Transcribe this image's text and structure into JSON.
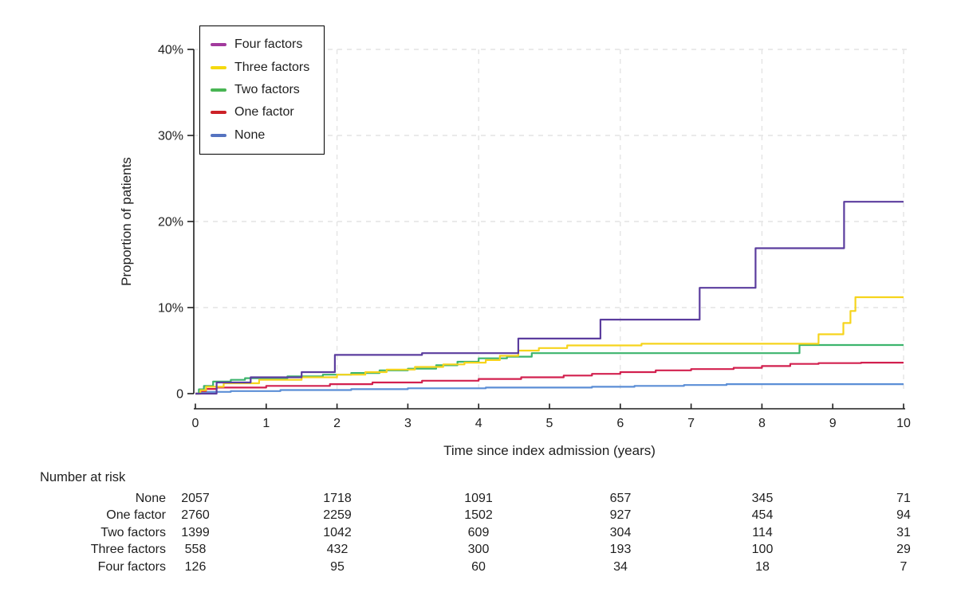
{
  "colors": {
    "background": "#ffffff",
    "axis": "#1f1f1f",
    "text": "#1f1f1f",
    "grid": "#e4e4e4"
  },
  "chart_data": {
    "type": "line",
    "subtype": "kaplan-meier-step",
    "title": "",
    "xlabel": "Time since index admission (years)",
    "ylabel": "Proportion of patients",
    "xlim": [
      0,
      10
    ],
    "ylim": [
      0,
      40
    ],
    "x_ticks": [
      0,
      1,
      2,
      3,
      4,
      5,
      6,
      7,
      8,
      9,
      10
    ],
    "y_ticks": [
      {
        "value": 0,
        "label": "0"
      },
      {
        "value": 10,
        "label": "10%"
      },
      {
        "value": 20,
        "label": "20%"
      },
      {
        "value": 30,
        "label": "30%"
      },
      {
        "value": 40,
        "label": "40%"
      }
    ],
    "grid": {
      "horizontal_at": [
        10,
        20,
        30,
        40
      ],
      "vertical_at": [
        2,
        4,
        6,
        8,
        10
      ],
      "style": "dashed"
    },
    "legend_position": "top-left",
    "series": [
      {
        "name": "Four factors",
        "color": "#5b3d9e",
        "swatch_color": "#a23a9d",
        "steps": [
          [
            0,
            0
          ],
          [
            0.3,
            1.3
          ],
          [
            0.78,
            1.9
          ],
          [
            1.5,
            2.5
          ],
          [
            1.97,
            4.5
          ],
          [
            3.2,
            4.7
          ],
          [
            4.56,
            6.4
          ],
          [
            5.72,
            8.6
          ],
          [
            7.12,
            12.3
          ],
          [
            7.91,
            16.9
          ],
          [
            9.16,
            22.3
          ],
          [
            10,
            22.3
          ]
        ]
      },
      {
        "name": "Three factors",
        "color": "#f6d41c",
        "swatch_color": "#f5d90f",
        "steps": [
          [
            0,
            0
          ],
          [
            0.07,
            0.4
          ],
          [
            0.15,
            0.8
          ],
          [
            0.4,
            1.2
          ],
          [
            0.9,
            1.6
          ],
          [
            1.5,
            1.9
          ],
          [
            2.0,
            2.2
          ],
          [
            2.4,
            2.5
          ],
          [
            2.7,
            2.8
          ],
          [
            3.1,
            3.1
          ],
          [
            3.5,
            3.4
          ],
          [
            3.8,
            3.6
          ],
          [
            4.1,
            3.9
          ],
          [
            4.3,
            4.4
          ],
          [
            4.56,
            5.0
          ],
          [
            4.85,
            5.3
          ],
          [
            5.25,
            5.6
          ],
          [
            6.3,
            5.8
          ],
          [
            8.8,
            6.9
          ],
          [
            9.15,
            8.2
          ],
          [
            9.25,
            9.6
          ],
          [
            9.32,
            11.2
          ],
          [
            10,
            11.2
          ]
        ]
      },
      {
        "name": "Two factors",
        "color": "#3cb46d",
        "swatch_color": "#49b554",
        "steps": [
          [
            0,
            0
          ],
          [
            0.05,
            0.5
          ],
          [
            0.12,
            0.9
          ],
          [
            0.25,
            1.4
          ],
          [
            0.5,
            1.6
          ],
          [
            0.7,
            1.8
          ],
          [
            1.3,
            2.0
          ],
          [
            1.8,
            2.2
          ],
          [
            2.2,
            2.4
          ],
          [
            2.6,
            2.7
          ],
          [
            3.0,
            2.9
          ],
          [
            3.4,
            3.3
          ],
          [
            3.7,
            3.7
          ],
          [
            4.0,
            4.1
          ],
          [
            4.4,
            4.3
          ],
          [
            4.75,
            4.7
          ],
          [
            8.53,
            5.65
          ],
          [
            10,
            5.65
          ]
        ]
      },
      {
        "name": "One factor",
        "color": "#d2204f",
        "swatch_color": "#cc2127",
        "steps": [
          [
            0,
            0
          ],
          [
            0.06,
            0.3
          ],
          [
            0.15,
            0.55
          ],
          [
            0.3,
            0.7
          ],
          [
            1.0,
            0.9
          ],
          [
            1.9,
            1.1
          ],
          [
            2.5,
            1.3
          ],
          [
            3.2,
            1.5
          ],
          [
            4.0,
            1.7
          ],
          [
            4.6,
            1.9
          ],
          [
            5.2,
            2.1
          ],
          [
            5.6,
            2.3
          ],
          [
            6.0,
            2.5
          ],
          [
            6.5,
            2.7
          ],
          [
            7.0,
            2.85
          ],
          [
            7.6,
            3.0
          ],
          [
            8.0,
            3.2
          ],
          [
            8.4,
            3.45
          ],
          [
            8.8,
            3.55
          ],
          [
            9.4,
            3.6
          ],
          [
            10,
            3.6
          ]
        ]
      },
      {
        "name": "None",
        "color": "#5b8ed6",
        "swatch_color": "#5573c0",
        "steps": [
          [
            0,
            0
          ],
          [
            0.08,
            0.2
          ],
          [
            0.5,
            0.3
          ],
          [
            1.2,
            0.42
          ],
          [
            2.2,
            0.52
          ],
          [
            3.0,
            0.62
          ],
          [
            4.1,
            0.7
          ],
          [
            5.6,
            0.8
          ],
          [
            6.2,
            0.9
          ],
          [
            6.9,
            1.0
          ],
          [
            7.5,
            1.1
          ],
          [
            10,
            1.1
          ]
        ]
      }
    ],
    "at_risk": {
      "title": "Number at risk",
      "time_points": [
        0,
        2,
        4,
        6,
        8,
        10
      ],
      "rows": [
        {
          "label": "None",
          "values": [
            "2057",
            "1718",
            "1091",
            "657",
            "345",
            "71"
          ]
        },
        {
          "label": "One factor",
          "values": [
            "2760",
            "2259",
            "1502",
            "927",
            "454",
            "94"
          ]
        },
        {
          "label": "Two factors",
          "values": [
            "1399",
            "1042",
            "609",
            "304",
            "114",
            "31"
          ]
        },
        {
          "label": "Three factors",
          "values": [
            "558",
            "432",
            "300",
            "193",
            "100",
            "29"
          ]
        },
        {
          "label": "Four factors",
          "values": [
            "126",
            "95",
            "60",
            "34",
            "18",
            "7"
          ]
        }
      ]
    }
  }
}
